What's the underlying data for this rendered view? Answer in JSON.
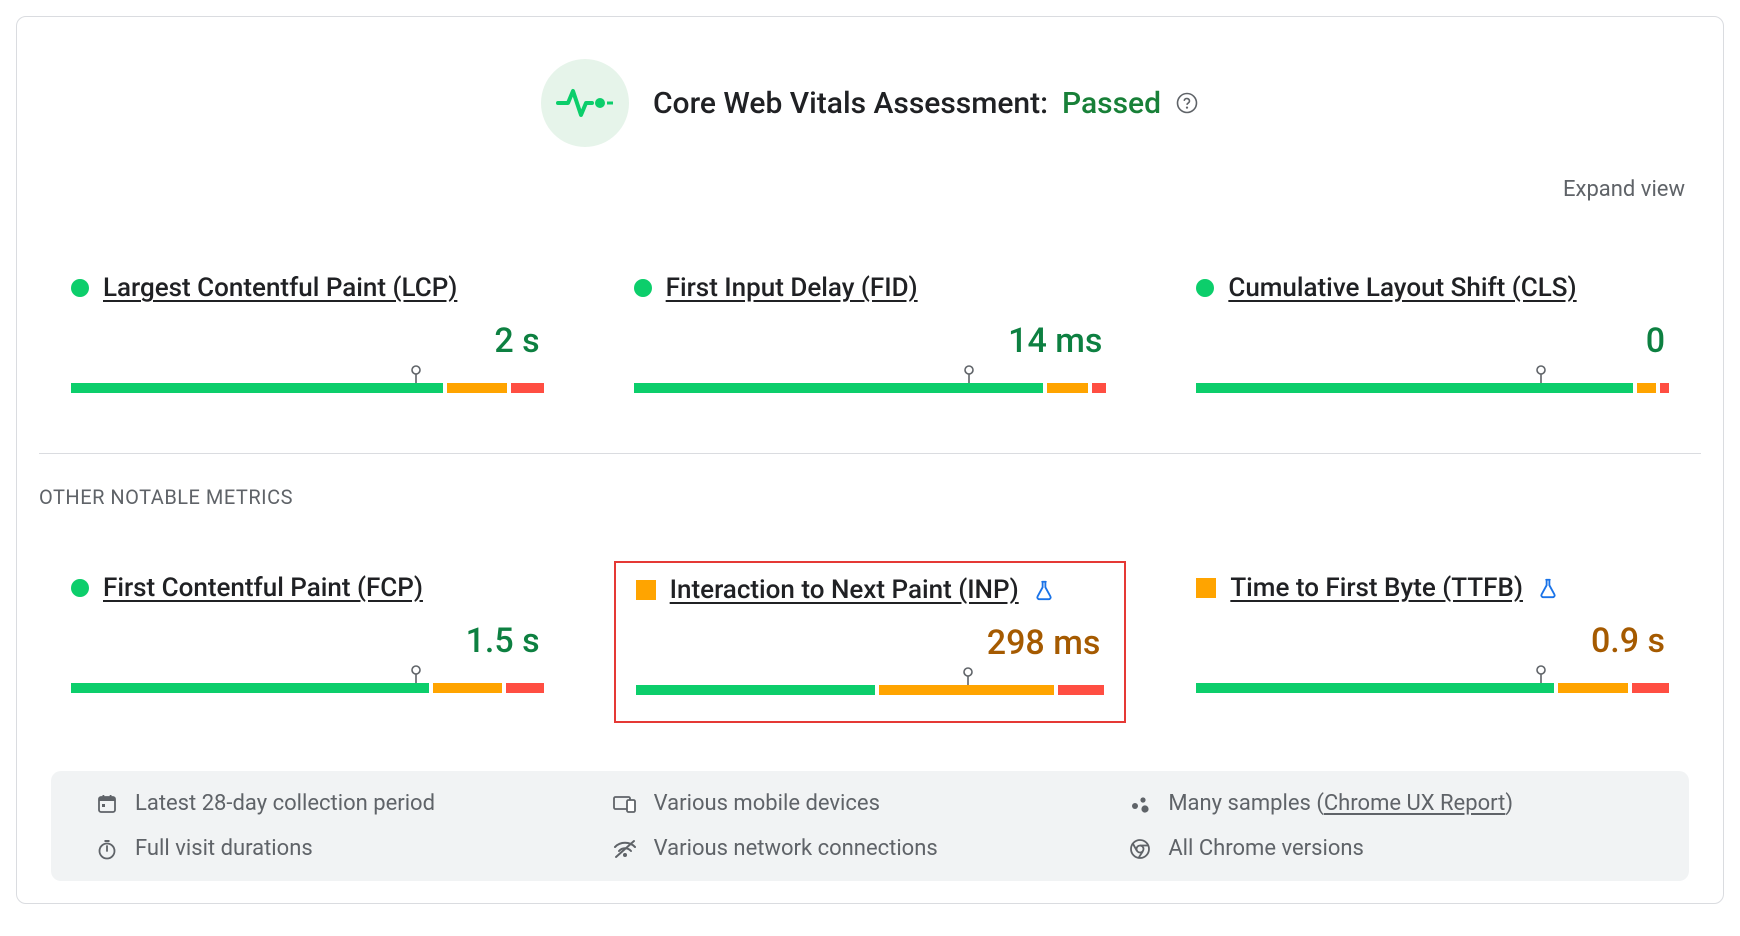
{
  "colors": {
    "good": "#0cce6b",
    "warn": "#ffa400",
    "poor": "#ff4e42",
    "good_text": "#0d8041",
    "warn_text": "#a55a00",
    "icon_bg": "#e6f4ea",
    "stroke_icon": "#0cce6b",
    "label": "#5f6368",
    "highlight_border": "#e53935",
    "flask": "#1a73e8"
  },
  "header": {
    "title_prefix": "Core Web Vitals Assessment:",
    "status": "Passed"
  },
  "expand_label": "Expand view",
  "section_label": "OTHER NOTABLE METRICS",
  "core_metrics": [
    {
      "name": "Largest Contentful Paint (LCP)",
      "value": "2 s",
      "status": "good",
      "marker_pct": 73,
      "segments": [
        {
          "pct": 80,
          "color": "#0cce6b"
        },
        {
          "pct": 13,
          "color": "#ffa400"
        },
        {
          "pct": 7,
          "color": "#ff4e42"
        }
      ]
    },
    {
      "name": "First Input Delay (FID)",
      "value": "14 ms",
      "status": "good",
      "marker_pct": 71,
      "segments": [
        {
          "pct": 88,
          "color": "#0cce6b"
        },
        {
          "pct": 9,
          "color": "#ffa400"
        },
        {
          "pct": 3,
          "color": "#ff4e42"
        }
      ]
    },
    {
      "name": "Cumulative Layout Shift (CLS)",
      "value": "0",
      "status": "good",
      "marker_pct": 73,
      "segments": [
        {
          "pct": 94,
          "color": "#0cce6b"
        },
        {
          "pct": 4,
          "color": "#ffa400"
        },
        {
          "pct": 2,
          "color": "#ff4e42"
        }
      ]
    }
  ],
  "notable_metrics": [
    {
      "name": "First Contentful Paint (FCP)",
      "value": "1.5 s",
      "status": "good",
      "flask": false,
      "highlight": false,
      "marker_pct": 73,
      "segments": [
        {
          "pct": 77,
          "color": "#0cce6b"
        },
        {
          "pct": 15,
          "color": "#ffa400"
        },
        {
          "pct": 8,
          "color": "#ff4e42"
        }
      ]
    },
    {
      "name": "Interaction to Next Paint (INP)",
      "value": "298 ms",
      "status": "warn",
      "flask": true,
      "highlight": true,
      "marker_pct": 71,
      "segments": [
        {
          "pct": 52,
          "color": "#0cce6b"
        },
        {
          "pct": 38,
          "color": "#ffa400"
        },
        {
          "pct": 10,
          "color": "#ff4e42"
        }
      ]
    },
    {
      "name": "Time to First Byte (TTFB)",
      "value": "0.9 s",
      "status": "warn",
      "flask": true,
      "highlight": false,
      "marker_pct": 73,
      "segments": [
        {
          "pct": 77,
          "color": "#0cce6b"
        },
        {
          "pct": 15,
          "color": "#ffa400"
        },
        {
          "pct": 8,
          "color": "#ff4e42"
        }
      ]
    }
  ],
  "footer": {
    "collection": "Latest 28-day collection period",
    "devices": "Various mobile devices",
    "samples_prefix": "Many samples (",
    "samples_link": "Chrome UX Report",
    "samples_suffix": ")",
    "durations": "Full visit durations",
    "network": "Various network connections",
    "chrome": "All Chrome versions"
  }
}
